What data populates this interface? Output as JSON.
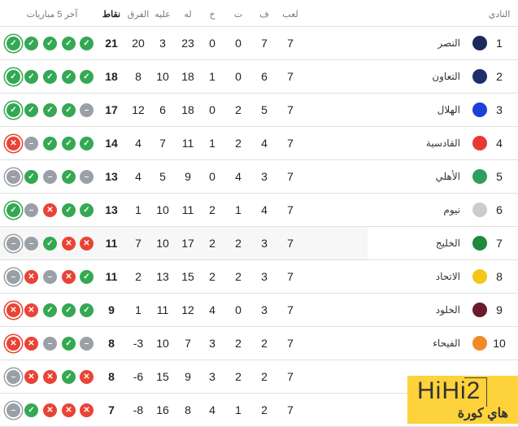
{
  "header": {
    "club": "النادي",
    "played": "لعب",
    "won": "ف",
    "drawn": "ت",
    "lost": "خ",
    "gf": "له",
    "ga": "عليه",
    "gd": "الفرق",
    "pts": "نقاط",
    "form": "آخر 5 مباريات"
  },
  "form_symbols": {
    "W": "✓",
    "L": "✕",
    "D": "–"
  },
  "colors": {
    "win": "#34a853",
    "loss": "#ea4335",
    "draw": "#9aa0a6"
  },
  "rows": [
    {
      "rank": "1",
      "name": "النصر",
      "logo_color": "#1b2a5a",
      "p": "7",
      "w": "7",
      "d": "0",
      "l": "0",
      "gf": "23",
      "ga": "3",
      "gd": "20",
      "pts": "21",
      "form": [
        "W",
        "W",
        "W",
        "W",
        "W"
      ]
    },
    {
      "rank": "2",
      "name": "التعاون",
      "logo_color": "#1c2f6b",
      "p": "7",
      "w": "6",
      "d": "0",
      "l": "1",
      "gf": "18",
      "ga": "10",
      "gd": "8",
      "pts": "18",
      "form": [
        "W",
        "W",
        "W",
        "W",
        "W"
      ]
    },
    {
      "rank": "3",
      "name": "الهلال",
      "logo_color": "#1e3fd8",
      "p": "7",
      "w": "5",
      "d": "2",
      "l": "0",
      "gf": "18",
      "ga": "6",
      "gd": "12",
      "pts": "17",
      "form": [
        "W",
        "W",
        "W",
        "W",
        "D"
      ]
    },
    {
      "rank": "4",
      "name": "القادسية",
      "logo_color": "#e53935",
      "p": "7",
      "w": "4",
      "d": "2",
      "l": "1",
      "gf": "11",
      "ga": "7",
      "gd": "4",
      "pts": "14",
      "form": [
        "L",
        "D",
        "W",
        "W",
        "W"
      ]
    },
    {
      "rank": "5",
      "name": "الأهلي",
      "logo_color": "#2e9e5b",
      "p": "7",
      "w": "3",
      "d": "4",
      "l": "0",
      "gf": "9",
      "ga": "5",
      "gd": "4",
      "pts": "13",
      "form": [
        "D",
        "W",
        "D",
        "W",
        "D"
      ]
    },
    {
      "rank": "6",
      "name": "نيوم",
      "logo_color": "#cccccc",
      "p": "7",
      "w": "4",
      "d": "1",
      "l": "2",
      "gf": "11",
      "ga": "10",
      "gd": "1",
      "pts": "13",
      "form": [
        "W",
        "D",
        "L",
        "W",
        "W"
      ]
    },
    {
      "rank": "7",
      "name": "الخليج",
      "logo_color": "#1f8a3a",
      "p": "7",
      "w": "3",
      "d": "2",
      "l": "2",
      "gf": "17",
      "ga": "10",
      "gd": "7",
      "pts": "11",
      "form": [
        "D",
        "D",
        "W",
        "L",
        "L"
      ]
    },
    {
      "rank": "8",
      "name": "الاتحاد",
      "logo_color": "#f5c518",
      "p": "7",
      "w": "3",
      "d": "2",
      "l": "2",
      "gf": "15",
      "ga": "13",
      "gd": "2",
      "pts": "11",
      "form": [
        "D",
        "L",
        "D",
        "L",
        "W"
      ]
    },
    {
      "rank": "9",
      "name": "الخلود",
      "logo_color": "#6b1a2a",
      "p": "7",
      "w": "3",
      "d": "0",
      "l": "4",
      "gf": "12",
      "ga": "11",
      "gd": "1",
      "pts": "9",
      "form": [
        "L",
        "L",
        "W",
        "W",
        "W"
      ]
    },
    {
      "rank": "10",
      "name": "الفيحاء",
      "logo_color": "#f08a24",
      "p": "7",
      "w": "2",
      "d": "2",
      "l": "3",
      "gf": "7",
      "ga": "10",
      "gd": "-3",
      "pts": "8",
      "form": [
        "L",
        "L",
        "D",
        "W",
        "D"
      ]
    },
    {
      "rank": "",
      "name": "",
      "logo_color": "",
      "p": "7",
      "w": "2",
      "d": "2",
      "l": "3",
      "gf": "9",
      "ga": "15",
      "gd": "-6",
      "pts": "8",
      "form": [
        "D",
        "L",
        "L",
        "W",
        "L"
      ]
    },
    {
      "rank": "",
      "name": "",
      "logo_color": "",
      "p": "7",
      "w": "2",
      "d": "1",
      "l": "4",
      "gf": "8",
      "ga": "16",
      "gd": "-8",
      "pts": "7",
      "form": [
        "D",
        "W",
        "L",
        "L",
        "L"
      ]
    }
  ],
  "watermark": {
    "brand": "HiHi2",
    "subtitle": "هاي كورة"
  }
}
